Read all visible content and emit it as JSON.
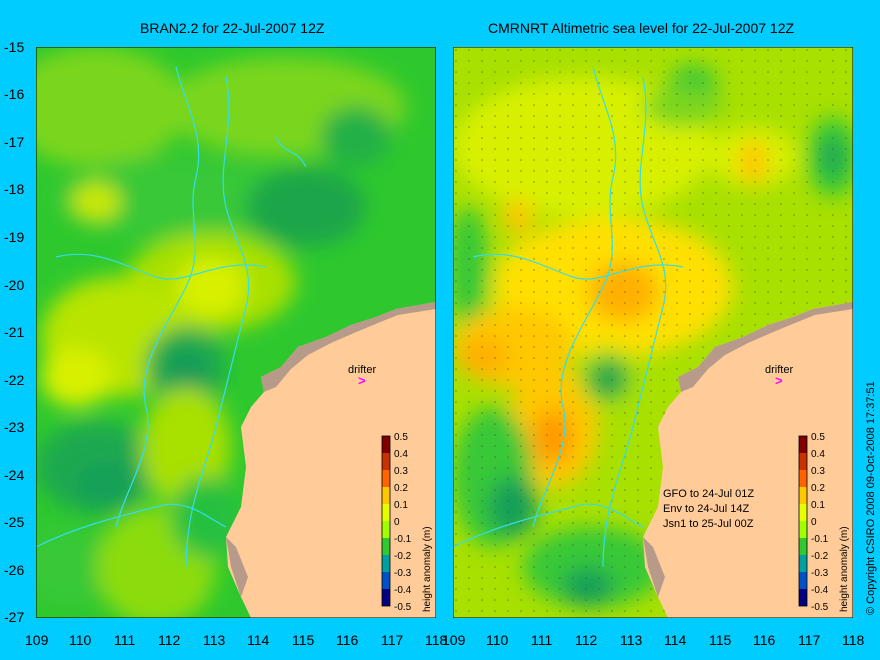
{
  "panels": [
    {
      "title": "BRAN2.2 for 22-Jul-2007 12Z",
      "drifter_label": "drifter",
      "legend_label": "height anomaly (m)",
      "legend_ticks": [
        "0.5",
        "0.4",
        "0.3",
        "0.2",
        "0.1",
        "0",
        "-0.1",
        "-0.2",
        "-0.3",
        "-0.4",
        "-0.5"
      ]
    },
    {
      "title": "CMRNRT Altimetric sea level  for 22-Jul-2007 12Z",
      "drifter_label": "drifter",
      "legend_label": "height anomaly (m)",
      "legend_ticks": [
        "0.5",
        "0.4",
        "0.3",
        "0.2",
        "0.1",
        "0",
        "-0.1",
        "-0.2",
        "-0.3",
        "-0.4",
        "-0.5"
      ],
      "notes": [
        "GFO to 24-Jul 01Z",
        "Env to 24-Jul 14Z",
        "Jsn1 to 25-Jul 00Z"
      ]
    }
  ],
  "y_ticks": [
    "-15",
    "-16",
    "-17",
    "-18",
    "-19",
    "-20",
    "-21",
    "-22",
    "-23",
    "-24",
    "-25",
    "-26",
    "-27"
  ],
  "x_ticks_left": [
    "109",
    "110",
    "111",
    "112",
    "113",
    "114",
    "115",
    "116",
    "117",
    "118"
  ],
  "x_ticks_right": [
    "109",
    "110",
    "111",
    "112",
    "113",
    "114",
    "115",
    "116",
    "117",
    "118"
  ],
  "copyright": "© Copyright CSIRO 2008   09-Oct-2008 17:37:51",
  "colors": {
    "background": "#00ccff",
    "land": "#ffcc99",
    "coast": "#b89a8a",
    "bathymetry": "#33ddee",
    "drifter": "#ff00ff",
    "scale": [
      "#800000",
      "#c83200",
      "#ff6400",
      "#ff9600",
      "#ffc800",
      "#e6ff00",
      "#a0ff00",
      "#32c832",
      "#00a0a0",
      "#0050c8",
      "#000080"
    ]
  }
}
